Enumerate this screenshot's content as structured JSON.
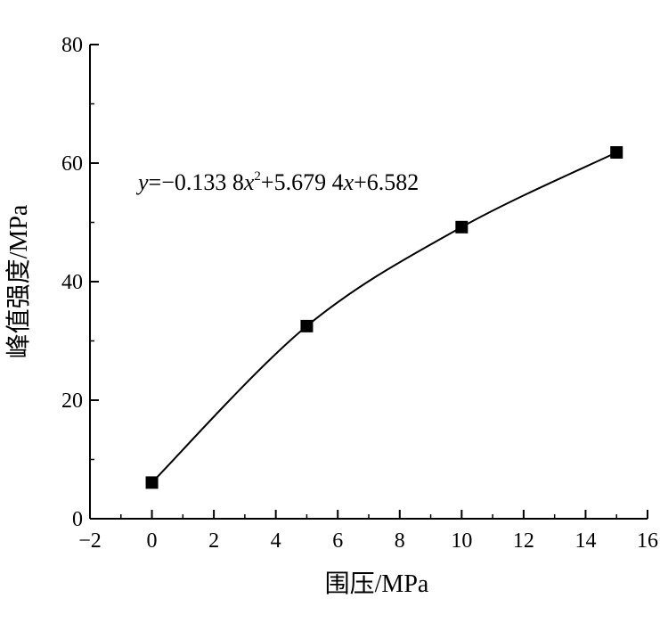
{
  "chart_data": {
    "type": "scatter",
    "title": "",
    "xlabel": "围压/MPa",
    "ylabel": "峰值强度/MPa",
    "xlim": [
      -2,
      16
    ],
    "ylim": [
      0,
      80
    ],
    "xticks": [
      -2,
      0,
      2,
      4,
      6,
      8,
      10,
      12,
      14,
      16
    ],
    "xtick_labels": [
      "−2",
      "0",
      "2",
      "4",
      "6",
      "8",
      "10",
      "12",
      "14",
      "16"
    ],
    "yticks": [
      0,
      20,
      40,
      60,
      80
    ],
    "ytick_labels": [
      "0",
      "20",
      "40",
      "60",
      "80"
    ],
    "series": [
      {
        "x": [
          0,
          5,
          10,
          15
        ],
        "y": [
          6.1,
          32.5,
          49.2,
          61.8
        ]
      }
    ],
    "fit": {
      "equation": "y=−0.133 8x²+5.679 4x+6.582",
      "eq_y": "y",
      "eq_p1": "=−0.133 8",
      "eq_x1": "x",
      "eq_sup": "2",
      "eq_p2": "+5.679 4",
      "eq_x2": "x",
      "eq_p3": "+6.582",
      "coefficients": [
        -0.1338,
        5.6794,
        6.582
      ]
    },
    "grid": false,
    "legend": "none"
  }
}
